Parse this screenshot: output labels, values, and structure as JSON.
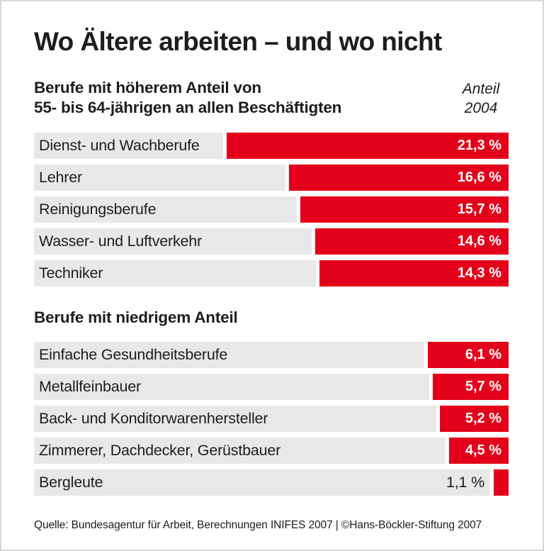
{
  "title": "Wo Ältere arbeiten – und wo nicht",
  "column_header": {
    "lines": [
      "Anteil",
      "2004"
    ]
  },
  "footer": {
    "source": "Quelle: Bundesagentur für Arbeit, Berechnungen INIFES 2007 | ©Hans-Böckler-Stiftung 2007"
  },
  "colors": {
    "bar_red": "#e2001a",
    "row_bg": "#e8e8e8",
    "text": "#1d1d1b",
    "frame_border": "#d8d8d8",
    "value_text": "#ffffff"
  },
  "chart_data": {
    "type": "bar",
    "orientation": "horizontal",
    "bars_right_aligned": true,
    "unit": "%",
    "title": "Wo Ältere arbeiten – und wo nicht",
    "value_column_header": "Anteil 2004",
    "xlim": [
      0,
      22
    ],
    "grid": false,
    "legend": false,
    "sections": [
      {
        "heading_lines": [
          "Berufe mit höherem Anteil von",
          "55- bis 64-jährigen an allen Beschäftigten"
        ],
        "rows": [
          {
            "label": "Dienst- und Wachberufe",
            "value": 21.3,
            "value_label": "21,3 %",
            "value_inside": true
          },
          {
            "label": "Lehrer",
            "value": 16.6,
            "value_label": "16,6 %",
            "value_inside": true
          },
          {
            "label": "Reinigungsberufe",
            "value": 15.7,
            "value_label": "15,7 %",
            "value_inside": true
          },
          {
            "label": "Wasser- und Luftverkehr",
            "value": 14.6,
            "value_label": "14,6 %",
            "value_inside": true
          },
          {
            "label": "Techniker",
            "value": 14.3,
            "value_label": "14,3 %",
            "value_inside": true
          }
        ]
      },
      {
        "heading_lines": [
          "Berufe mit niedrigem Anteil"
        ],
        "rows": [
          {
            "label": "Einfache Gesundheitsberufe",
            "value": 6.1,
            "value_label": "6,1 %",
            "value_inside": true
          },
          {
            "label": "Metallfeinbauer",
            "value": 5.7,
            "value_label": "5,7 %",
            "value_inside": true
          },
          {
            "label": "Back- und Konditorwarenhersteller",
            "value": 5.2,
            "value_label": "5,2 %",
            "value_inside": true
          },
          {
            "label": "Zimmerer, Dachdecker, Gerüstbauer",
            "value": 4.5,
            "value_label": "4,5 %",
            "value_inside": true
          },
          {
            "label": "Bergleute",
            "value": 1.1,
            "value_label": "1,1 %",
            "value_inside": false
          }
        ]
      }
    ]
  }
}
